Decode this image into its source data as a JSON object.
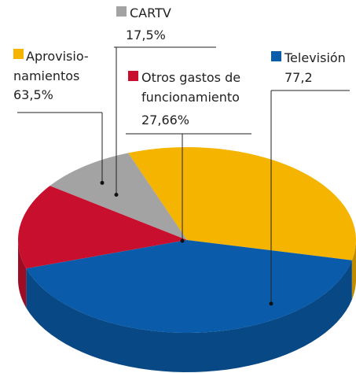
{
  "chart_data": {
    "type": "pie3d",
    "categories": [
      [
        "Aprovisio-",
        "namientos"
      ],
      [
        "CARTV"
      ],
      [
        "Otros gastos de",
        "funcionamiento"
      ],
      [
        "Televisión"
      ]
    ],
    "values": [
      63.5,
      17.5,
      27.66,
      77.2
    ],
    "value_labels": [
      "63,5%",
      "17,5%",
      "27,66%",
      "77,2"
    ],
    "colors": [
      "#f5b400",
      "#a3a3a3",
      "#c8102e",
      "#0a5cab"
    ]
  }
}
